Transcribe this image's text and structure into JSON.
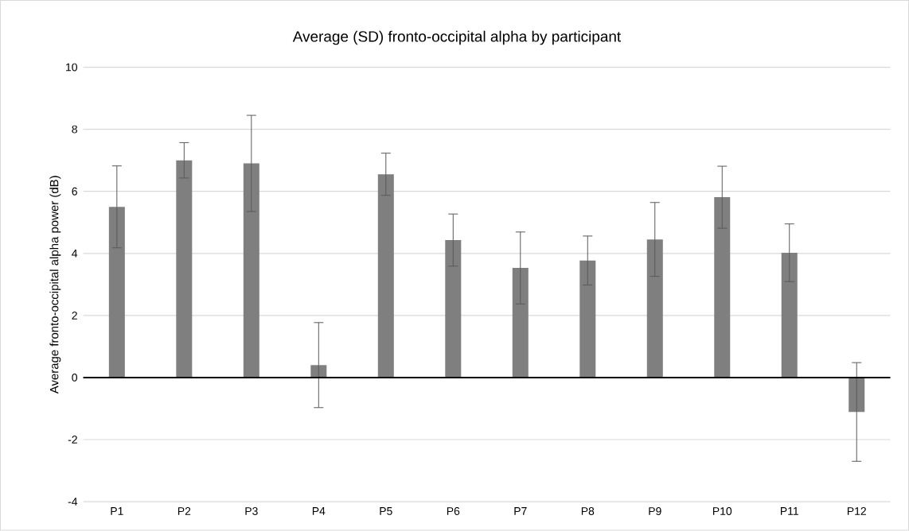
{
  "chart_data": {
    "type": "bar",
    "title": "Average (SD) fronto-occipital alpha by participant",
    "ylabel": "Average fronto-occipital alpha power (dB)",
    "categories": [
      "P1",
      "P2",
      "P3",
      "P4",
      "P5",
      "P6",
      "P7",
      "P8",
      "P9",
      "P10",
      "P11",
      "P12"
    ],
    "values": [
      5.5,
      7.0,
      6.9,
      0.4,
      6.55,
      4.43,
      3.53,
      3.77,
      4.45,
      5.81,
      4.02,
      -1.11
    ],
    "errors": [
      1.32,
      0.57,
      1.55,
      1.37,
      0.68,
      0.84,
      1.16,
      0.79,
      1.19,
      1.0,
      0.93,
      1.59
    ],
    "color": "#7f7f7f",
    "ylim": [
      -4,
      10
    ],
    "yticks": [
      -4,
      -2,
      0,
      2,
      4,
      6,
      8,
      10
    ],
    "grid": "y"
  }
}
